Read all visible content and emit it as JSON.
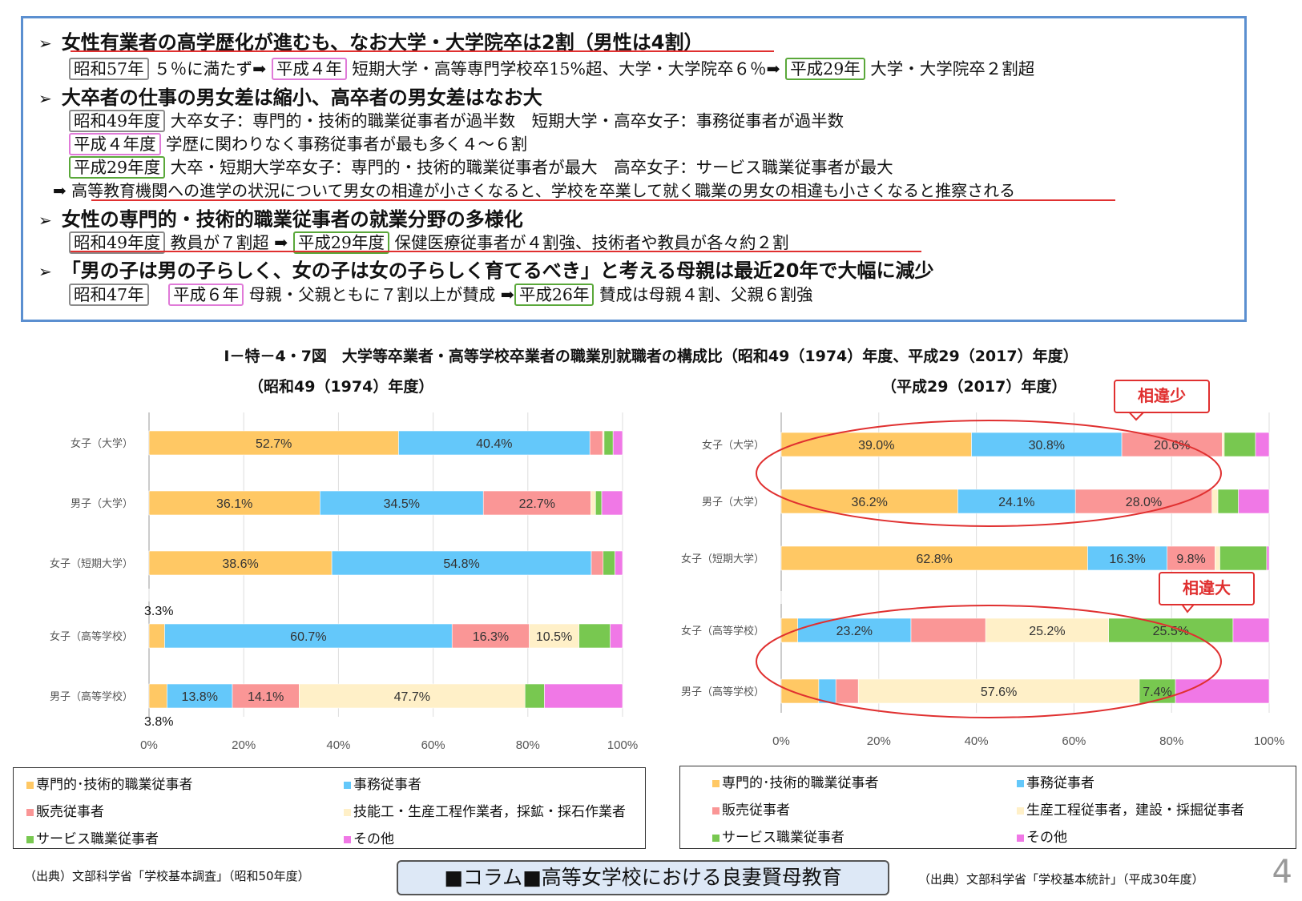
{
  "summary": {
    "h1": "女性有業者の高学歴化が進むも、なお大学・大学院卒は2割（男性は4割）",
    "h1_l1": {
      "tag1": "昭和57年",
      "t1": "５％に満たず➡",
      "tag2": "平成４年",
      "t2": "短期大学・高等専門学校卒15%超、大学・大学院卒６％➡",
      "tag3": "平成29年",
      "t3": "大学・大学院卒２割超"
    },
    "h2": "大卒者の仕事の男女差は縮小、高卒者の男女差はなお大",
    "h2_l1": {
      "tag": "昭和49年度",
      "t": "大卒女子：専門的・技術的職業従事者が過半数　短期大学・高卒女子：事務従事者が過半数"
    },
    "h2_l2": {
      "tag": "平成４年度",
      "t": "学歴に関わりなく事務従事者が最も多く４～６割"
    },
    "h2_l3": {
      "tag": "平成29年度",
      "t": "大卒・短期大学卒女子：専門的・技術的職業従事者が最大　高卒女子：サービス職業従事者が最大"
    },
    "h2_l4": {
      "arrow": "➡",
      "t": "高等教育機関への進学の状況について男女の相違が小さくなると、学校を卒業して就く職業の男女の相違も小さくなると推察される"
    },
    "h3": "女性の専門的・技術的職業従事者の就業分野の多様化",
    "h3_l1": {
      "tag1": "昭和49年度",
      "t1": "教員が７割超",
      "arrow": "➡",
      "tag2": "平成29年度",
      "t2": "保健医療従事者が４割強、技術者や教員が各々約２割"
    },
    "h4": "「男の子は男の子らしく、女の子は女の子らしく育てるべき」と考える母親は最近20年で大幅に減少",
    "h4_l1": {
      "tag1": "昭和47年",
      "tag2": "平成６年",
      "t1": "母親・父親ともに７割以上が賛成",
      "arrow": "➡",
      "tag3": "平成26年",
      "t2": "賛成は母親４割、父親６割強"
    },
    "bullet": "➢"
  },
  "figure_title": "Ⅰ－特－4・7図　大学等卒業者・高等学校卒業者の職業別就職者の構成比（昭和49（1974）年度、平成29（2017）年度）",
  "colors": {
    "pro": "#ffc864",
    "office": "#64c8fa",
    "sales": "#fa9696",
    "prod": "#fff0c8",
    "service": "#78c850",
    "other": "#f078e6"
  },
  "chart_data": [
    {
      "type": "bar",
      "orientation": "horizontal-stacked-100",
      "title": "（昭和49（1974）年度）",
      "categories": [
        "女子（大学）",
        "男子（大学）",
        "女子（短期大学）",
        "女子（高等学校）",
        "男子（高等学校）"
      ],
      "series": [
        {
          "name": "専門的･技術的職業従事者",
          "key": "pro",
          "values": [
            52.7,
            36.1,
            38.6,
            3.3,
            3.8
          ]
        },
        {
          "name": "事務従事者",
          "key": "office",
          "values": [
            40.4,
            34.5,
            54.8,
            60.7,
            13.8
          ]
        },
        {
          "name": "販売従事者",
          "key": "sales",
          "values": [
            2.7,
            22.7,
            2.5,
            16.3,
            14.1
          ]
        },
        {
          "name": "技能工・生産工程作業者，採鉱・採石作業者",
          "key": "prod",
          "values": [
            0.3,
            1.0,
            0.0,
            10.5,
            47.7
          ]
        },
        {
          "name": "サービス職業従事者",
          "key": "service",
          "values": [
            1.9,
            1.3,
            2.5,
            6.6,
            4.1
          ]
        },
        {
          "name": "その他",
          "key": "other",
          "values": [
            2.0,
            4.4,
            1.6,
            2.6,
            16.5
          ]
        }
      ],
      "data_labels": [
        [
          "52.7%",
          "40.4%",
          "",
          "",
          "",
          ""
        ],
        [
          "36.1%",
          "34.5%",
          "22.7%",
          "",
          "",
          ""
        ],
        [
          "38.6%",
          "54.8%",
          "",
          "",
          "",
          ""
        ],
        [
          "",
          "60.7%",
          "16.3%",
          "10.5%",
          "",
          ""
        ],
        [
          "",
          "13.8%",
          "14.1%",
          "47.7%",
          "",
          ""
        ]
      ],
      "outside_labels": [
        "3.3%",
        "3.8%"
      ],
      "xticks": [
        "0%",
        "20%",
        "40%",
        "60%",
        "80%",
        "100%"
      ],
      "xlim": [
        0,
        100
      ]
    },
    {
      "type": "bar",
      "orientation": "horizontal-stacked-100",
      "title": "（平成29（2017）年度）",
      "categories": [
        "女子（大学）",
        "男子（大学）",
        "女子（短期大学）",
        "女子（高等学校）",
        "男子（高等学校）"
      ],
      "series": [
        {
          "name": "専門的･技術的職業従事者",
          "key": "pro",
          "values": [
            39.0,
            36.2,
            62.8,
            3.4,
            7.7
          ]
        },
        {
          "name": "事務従事者",
          "key": "office",
          "values": [
            30.8,
            24.1,
            16.3,
            23.2,
            3.5
          ]
        },
        {
          "name": "販売従事者",
          "key": "sales",
          "values": [
            20.6,
            28.0,
            9.8,
            15.3,
            4.6
          ]
        },
        {
          "name": "生産工程従事者，建設・採掘従事者",
          "key": "prod",
          "values": [
            0.4,
            1.2,
            1.0,
            25.2,
            57.6
          ]
        },
        {
          "name": "サービス職業従事者",
          "key": "service",
          "values": [
            6.4,
            4.2,
            9.6,
            25.5,
            7.4
          ]
        },
        {
          "name": "その他",
          "key": "other",
          "values": [
            2.8,
            6.3,
            0.5,
            7.4,
            19.2
          ]
        }
      ],
      "data_labels": [
        [
          "39.0%",
          "30.8%",
          "20.6%",
          "",
          "",
          ""
        ],
        [
          "36.2%",
          "24.1%",
          "28.0%",
          "",
          "",
          ""
        ],
        [
          "62.8%",
          "16.3%",
          "9.8%",
          "",
          "",
          ""
        ],
        [
          "",
          "23.2%",
          "",
          "25.2%",
          "25.5%",
          ""
        ],
        [
          "",
          "",
          "",
          "57.6%",
          "7.4%",
          ""
        ]
      ],
      "xticks": [
        "0%",
        "20%",
        "40%",
        "60%",
        "80%",
        "100%"
      ],
      "xlim": [
        0,
        100
      ],
      "callouts": [
        "相違少",
        "相違大"
      ]
    }
  ],
  "legend_left": [
    "専門的･技術的職業従事者",
    "事務従事者",
    "販売従事者",
    "技能工・生産工程作業者，採鉱・採石作業者",
    "サービス職業従事者",
    "その他"
  ],
  "legend_right": [
    "専門的･技術的職業従事者",
    "事務従事者",
    "販売従事者",
    "生産工程従事者，建設・採掘従事者",
    "サービス職業従事者",
    "その他"
  ],
  "source_left": "（出典）文部科学省「学校基本調査」（昭和50年度）",
  "source_right": "（出典）文部科学省「学校基本統計」（平成30年度）",
  "column_title": "■コラム■高等女学校における良妻賢母教育",
  "page_number": "4"
}
